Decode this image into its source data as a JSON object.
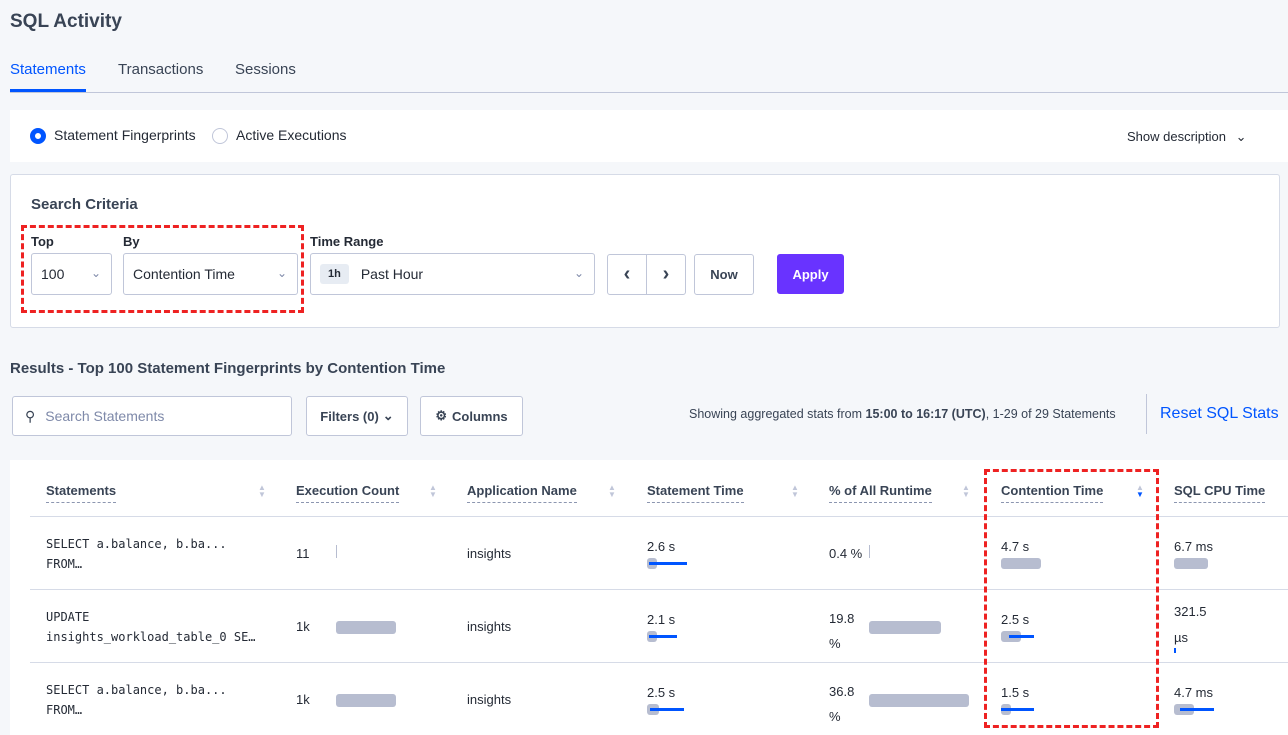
{
  "title": "SQL Activity",
  "tabs": [
    {
      "label": "Statements",
      "active": true
    },
    {
      "label": "Transactions"
    },
    {
      "label": "Sessions"
    }
  ],
  "mode": {
    "options": [
      "Statement Fingerprints",
      "Active Executions"
    ],
    "selected": 0,
    "show_description": "Show description"
  },
  "criteria": {
    "heading": "Search Criteria",
    "top_label": "Top",
    "top_value": "100",
    "by_label": "By",
    "by_value": "Contention Time",
    "time_label": "Time Range",
    "time_badge": "1h",
    "time_value": "Past Hour",
    "now": "Now",
    "apply": "Apply"
  },
  "results": {
    "title": "Results - Top 100 Statement Fingerprints by Contention Time",
    "search_placeholder": "Search Statements",
    "filters": "Filters (0)",
    "columns": "Columns",
    "summary_prefix": "Showing aggregated stats from ",
    "summary_range": "15:00 to 16:17 (UTC)",
    "summary_suffix": ", 1-29 of 29 Statements",
    "reset": "Reset SQL Stats"
  },
  "colors": {
    "accent": "#0055ff",
    "apply": "#6933ff",
    "highlight": "#ee2222",
    "bar": "#b7bdd0"
  },
  "table": {
    "headers": [
      "Statements",
      "Execution Count",
      "Application Name",
      "Statement Time",
      "% of All Runtime",
      "Contention Time",
      "SQL CPU Time"
    ],
    "sorted_column": "Contention Time",
    "sort_direction": "descending",
    "rows": [
      {
        "statement": [
          "SELECT a.balance, b.ba...",
          "FROM…"
        ],
        "exec": "11",
        "exec_frac": 0.01,
        "app": "insights",
        "stmt_time": "2.6 s",
        "stmt_bar": [
          0.1,
          0.02,
          0.4
        ],
        "pct": [
          "0.4 %"
        ],
        "pct_frac": 0.004,
        "cont": "4.7 s",
        "cont_bar": [
          0.4,
          0,
          0
        ],
        "cpu": [
          "6.7 ms"
        ],
        "cpu_bar": [
          0.34,
          0,
          0
        ]
      },
      {
        "statement": [
          "UPDATE",
          "insights_workload_table_0 SE…"
        ],
        "exec": "1k",
        "exec_frac": 0.6,
        "app": "insights",
        "stmt_time": "2.1 s",
        "stmt_bar": [
          0.1,
          0.02,
          0.3
        ],
        "pct": [
          "19.8",
          "%"
        ],
        "pct_frac": 0.72,
        "cont": "2.5 s",
        "cont_bar": [
          0.2,
          0.08,
          0.33
        ],
        "cpu": [
          "321.5",
          "µs"
        ],
        "cpu_bar": [
          0.01,
          0,
          0.01
        ]
      },
      {
        "statement": [
          "SELECT a.balance, b.ba...",
          "FROM…"
        ],
        "exec": "1k",
        "exec_frac": 0.6,
        "app": "insights",
        "stmt_time": "2.5 s",
        "stmt_bar": [
          0.12,
          0.03,
          0.37
        ],
        "pct": [
          "36.8",
          "%"
        ],
        "pct_frac": 1.0,
        "cont": "1.5 s",
        "cont_bar": [
          0.1,
          0,
          0.33
        ],
        "cpu": [
          "4.7 ms"
        ],
        "cpu_bar": [
          0.2,
          0.06,
          0.4
        ]
      }
    ]
  }
}
